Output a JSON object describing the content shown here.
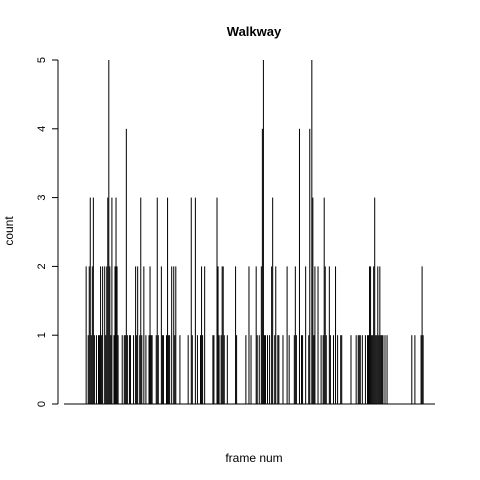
{
  "chart_data": {
    "type": "bar",
    "title": "Walkway",
    "xlabel": "frame num",
    "ylabel": "count",
    "ylim": [
      0,
      5
    ],
    "yticks": [
      0,
      1,
      2,
      3,
      4,
      5
    ],
    "grid": false,
    "legend": "none",
    "bar_color": "#000000",
    "x_count": 360,
    "values": [
      0,
      0,
      0,
      0,
      0,
      0,
      0,
      0,
      0,
      0,
      0,
      0,
      0,
      0,
      0,
      0,
      0,
      0,
      0,
      0,
      0,
      2,
      0,
      1,
      2,
      3,
      1,
      2,
      3,
      1,
      0,
      1,
      0,
      1,
      1,
      2,
      1,
      2,
      0,
      2,
      1,
      2,
      3,
      5,
      2,
      1,
      3,
      0,
      1,
      2,
      3,
      2,
      1,
      0,
      0,
      0,
      1,
      0,
      1,
      1,
      4,
      1,
      0,
      1,
      1,
      0,
      0,
      1,
      0,
      2,
      1,
      2,
      0,
      1,
      3,
      1,
      0,
      2,
      0,
      1,
      0,
      0,
      1,
      2,
      1,
      1,
      0,
      0,
      0,
      1,
      3,
      1,
      0,
      0,
      2,
      1,
      1,
      0,
      0,
      1,
      3,
      1,
      1,
      0,
      2,
      0,
      2,
      1,
      2,
      0,
      0,
      0,
      1,
      0,
      0,
      0,
      0,
      0,
      0,
      0,
      1,
      0,
      0,
      3,
      1,
      0,
      0,
      3,
      0,
      1,
      0,
      0,
      1,
      2,
      1,
      0,
      2,
      0,
      0,
      0,
      0,
      0,
      0,
      0,
      1,
      1,
      0,
      0,
      3,
      2,
      1,
      0,
      1,
      2,
      2,
      1,
      0,
      0,
      1,
      0,
      0,
      0,
      0,
      0,
      0,
      0,
      2,
      1,
      0,
      0,
      0,
      0,
      0,
      0,
      0,
      0,
      1,
      0,
      0,
      2,
      0,
      1,
      0,
      0,
      0,
      0,
      2,
      1,
      0,
      1,
      0,
      2,
      4,
      5,
      1,
      1,
      0,
      1,
      0,
      1,
      0,
      2,
      3,
      0,
      1,
      2,
      0,
      1,
      1,
      0,
      0,
      0,
      1,
      0,
      0,
      0,
      2,
      0,
      1,
      0,
      0,
      0,
      0,
      1,
      2,
      1,
      0,
      0,
      4,
      0,
      1,
      1,
      0,
      0,
      2,
      0,
      0,
      1,
      4,
      0,
      5,
      3,
      1,
      2,
      0,
      0,
      2,
      0,
      0,
      1,
      0,
      1,
      3,
      2,
      1,
      0,
      0,
      2,
      1,
      0,
      0,
      1,
      0,
      2,
      0,
      1,
      0,
      0,
      1,
      1,
      0,
      0,
      0,
      0,
      0,
      0,
      0,
      0,
      1,
      0,
      0,
      0,
      0,
      1,
      0,
      1,
      1,
      1,
      0,
      1,
      0,
      0,
      1,
      0,
      1,
      1,
      2,
      2,
      1,
      1,
      2,
      3,
      1,
      1,
      2,
      1,
      2,
      1,
      1,
      1,
      0,
      1,
      0,
      1,
      0,
      0,
      0,
      0,
      0,
      0,
      0,
      0,
      0,
      0,
      0,
      0,
      0,
      0,
      0,
      0,
      0,
      0,
      0,
      0,
      0,
      0,
      0,
      1,
      0,
      0,
      1,
      0,
      0,
      0,
      0,
      0,
      1,
      2,
      1,
      0,
      0,
      0,
      0,
      0,
      0,
      0,
      0,
      0,
      0,
      0
    ]
  }
}
